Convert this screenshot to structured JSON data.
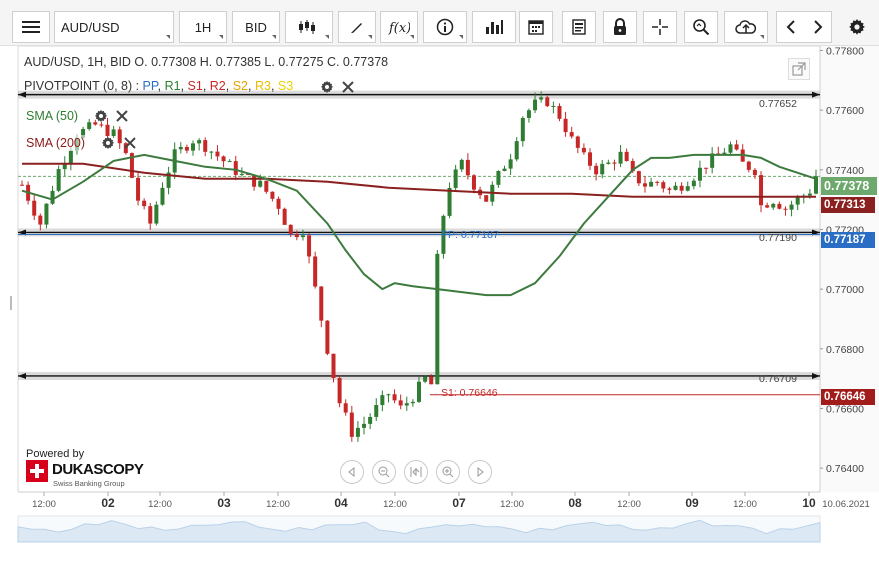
{
  "toolbar": {
    "symbol": "AUD/USD",
    "timeframe": "1H",
    "price_side": "BID"
  },
  "legend": {
    "ohlc_text": "AUD/USD, 1H, BID    O. 0.77308 H. 0.77385 L. 0.77275 C. 0.77378",
    "pivot_name": "PIVOTPOINT (0, 8)",
    "pivot_sep": " : ",
    "pivot_items": [
      "PP",
      "R1",
      "S1",
      "R2",
      "S2",
      "R3",
      "S3"
    ],
    "sma50": "SMA (50)",
    "sma200": "SMA (200)"
  },
  "branding": {
    "powered": "Powered by",
    "name": "DUKASCOPY",
    "tagline": "Swiss Banking Group"
  },
  "colors": {
    "up": "#2e7d32",
    "down": "#c62828",
    "sma50": "#3d7a3d",
    "sma200": "#8b2020",
    "pp": "#2a6dc4",
    "s1": "#c62828",
    "current": "#6da96d"
  },
  "chart_data": {
    "type": "candlestick",
    "symbol": "AUD/USD",
    "timeframe": "1H",
    "ylim": [
      0.7632,
      0.77815
    ],
    "y_ticks": [
      "0.77800",
      "0.77600",
      "0.77400",
      "0.77200",
      "0.77000",
      "0.76800",
      "0.76600",
      "0.76400"
    ],
    "x_tick_labels": [
      "12:00",
      "02",
      "12:00",
      "03",
      "12:00",
      "04",
      "12:00",
      "07",
      "12:00",
      "08",
      "12:00",
      "09",
      "12:00",
      "10",
      "10.06.2021"
    ],
    "ohlc": {
      "open": 0.77308,
      "high": 0.77385,
      "low": 0.77275,
      "close": 0.77378
    },
    "current_price": "0.77378",
    "sma200_value": "0.77313",
    "pp_value": "0.77187",
    "s1_value": "0.76646",
    "level_labels": [
      "0.77652",
      "0.77190",
      "0.76709"
    ],
    "pp_label": "PP: 0.77187",
    "s1_label": "S1: 0.76646",
    "price_path": [
      [
        0,
        0.7735
      ],
      [
        3,
        0.7722
      ],
      [
        6,
        0.774
      ],
      [
        9,
        0.7752
      ],
      [
        12,
        0.7755
      ],
      [
        15,
        0.7752
      ],
      [
        17,
        0.7745
      ],
      [
        19,
        0.773
      ],
      [
        21,
        0.7722
      ],
      [
        23,
        0.7735
      ],
      [
        25,
        0.7745
      ],
      [
        28,
        0.775
      ],
      [
        30,
        0.7748
      ],
      [
        33,
        0.7743
      ],
      [
        36,
        0.7738
      ],
      [
        39,
        0.7735
      ],
      [
        42,
        0.7728
      ],
      [
        44,
        0.7718
      ],
      [
        46,
        0.772
      ],
      [
        48,
        0.77
      ],
      [
        50,
        0.768
      ],
      [
        52,
        0.7662
      ],
      [
        54,
        0.7652
      ],
      [
        56,
        0.7655
      ],
      [
        58,
        0.766
      ],
      [
        60,
        0.7665
      ],
      [
        62,
        0.766
      ],
      [
        64,
        0.7664
      ],
      [
        66,
        0.767
      ],
      [
        67,
        0.7668
      ],
      [
        68,
        0.771
      ],
      [
        69,
        0.7725
      ],
      [
        70,
        0.7735
      ],
      [
        72,
        0.7742
      ],
      [
        74,
        0.7735
      ],
      [
        76,
        0.773
      ],
      [
        78,
        0.7738
      ],
      [
        80,
        0.7745
      ],
      [
        82,
        0.7758
      ],
      [
        84,
        0.7762
      ],
      [
        86,
        0.7763
      ],
      [
        88,
        0.7758
      ],
      [
        90,
        0.775
      ],
      [
        92,
        0.7744
      ],
      [
        94,
        0.774
      ],
      [
        96,
        0.7742
      ],
      [
        98,
        0.7745
      ],
      [
        100,
        0.7738
      ],
      [
        102,
        0.7735
      ],
      [
        104,
        0.7736
      ],
      [
        106,
        0.7733
      ],
      [
        108,
        0.7735
      ],
      [
        110,
        0.7738
      ],
      [
        112,
        0.7742
      ],
      [
        114,
        0.7745
      ],
      [
        116,
        0.7748
      ],
      [
        118,
        0.7742
      ],
      [
        120,
        0.774
      ],
      [
        121,
        0.7728
      ],
      [
        123,
        0.773
      ],
      [
        125,
        0.7727
      ],
      [
        127,
        0.773
      ],
      [
        129,
        0.7733
      ],
      [
        130,
        0.7738
      ]
    ],
    "sma50_path": [
      [
        0,
        0.7733
      ],
      [
        5,
        0.773
      ],
      [
        10,
        0.7736
      ],
      [
        15,
        0.7743
      ],
      [
        20,
        0.7745
      ],
      [
        25,
        0.7743
      ],
      [
        30,
        0.7741
      ],
      [
        35,
        0.774
      ],
      [
        40,
        0.7737
      ],
      [
        45,
        0.7733
      ],
      [
        50,
        0.7722
      ],
      [
        53,
        0.7713
      ],
      [
        56,
        0.7705
      ],
      [
        59,
        0.77
      ],
      [
        61,
        0.7702
      ],
      [
        64,
        0.7701
      ],
      [
        68,
        0.77
      ],
      [
        72,
        0.7699
      ],
      [
        76,
        0.7698
      ],
      [
        80,
        0.7698
      ],
      [
        84,
        0.7702
      ],
      [
        88,
        0.7711
      ],
      [
        92,
        0.7722
      ],
      [
        96,
        0.7731
      ],
      [
        100,
        0.774
      ],
      [
        103,
        0.7744
      ],
      [
        106,
        0.7744
      ],
      [
        110,
        0.7745
      ],
      [
        114,
        0.7745
      ],
      [
        118,
        0.7745
      ],
      [
        121,
        0.7744
      ],
      [
        124,
        0.7741
      ],
      [
        127,
        0.7739
      ],
      [
        130,
        0.7737
      ]
    ],
    "sma200_path": [
      [
        0,
        0.7742
      ],
      [
        10,
        0.7742
      ],
      [
        20,
        0.7739
      ],
      [
        30,
        0.7737
      ],
      [
        40,
        0.7737
      ],
      [
        50,
        0.7736
      ],
      [
        60,
        0.7734
      ],
      [
        70,
        0.7733
      ],
      [
        80,
        0.7732
      ],
      [
        90,
        0.7732
      ],
      [
        100,
        0.7731
      ],
      [
        110,
        0.7731
      ],
      [
        120,
        0.7731
      ],
      [
        130,
        0.7731
      ]
    ],
    "x_domain": [
      0,
      130
    ],
    "hlines": {
      "r_level": 0.77652,
      "pp_level": 0.7719,
      "s_level": 0.76709,
      "s1_level": 0.76646,
      "current": 0.77378
    }
  }
}
